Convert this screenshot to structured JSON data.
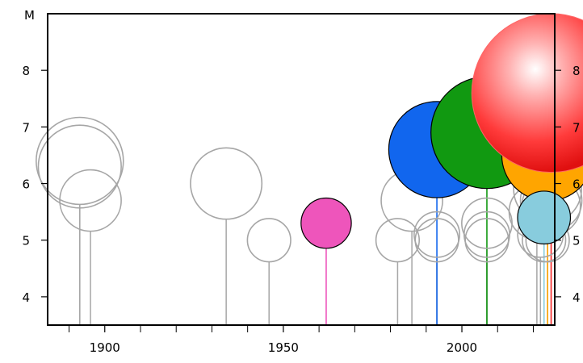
{
  "chart_data": {
    "type": "scatter",
    "title": "",
    "xlabel": "",
    "ylabel": "M",
    "xlim": [
      1884,
      2026
    ],
    "ylim": [
      3.5,
      9.0
    ],
    "grid": false,
    "x_ticks_major": [
      1900,
      1950,
      2000
    ],
    "x_ticks_minor": [
      1890,
      1910,
      1920,
      1930,
      1940,
      1960,
      1970,
      1980,
      1990,
      2010,
      2020
    ],
    "y_ticks": [
      4,
      5,
      6,
      7,
      8
    ],
    "highlighted_events": [
      {
        "x": 1962,
        "y": 5.3,
        "color": "#ee55bb"
      },
      {
        "x": 1993,
        "y": 6.6,
        "color": "#1166ee"
      },
      {
        "x": 2007,
        "y": 6.9,
        "color": "#119911"
      },
      {
        "x": 2024,
        "y": 6.5,
        "color": "#ffa500"
      },
      {
        "x": 2023,
        "y": 5.4,
        "color": "#88ccdd"
      },
      {
        "x": 2025,
        "y": 7.6,
        "color": "#ff3333"
      }
    ],
    "background_events": [
      {
        "x": 1893,
        "y": 6.4
      },
      {
        "x": 1893,
        "y": 6.3
      },
      {
        "x": 1896,
        "y": 5.7
      },
      {
        "x": 1934,
        "y": 6.0
      },
      {
        "x": 1946,
        "y": 5.0
      },
      {
        "x": 1982,
        "y": 5.0
      },
      {
        "x": 1986,
        "y": 5.7
      },
      {
        "x": 1993,
        "y": 5.1
      },
      {
        "x": 1993,
        "y": 5.0
      },
      {
        "x": 2007,
        "y": 5.3
      },
      {
        "x": 2007,
        "y": 5.1
      },
      {
        "x": 2007,
        "y": 5.0
      },
      {
        "x": 2021,
        "y": 5.5
      },
      {
        "x": 2022,
        "y": 5.1
      },
      {
        "x": 2023,
        "y": 5.0
      },
      {
        "x": 2024,
        "y": 5.9
      },
      {
        "x": 2025,
        "y": 5.7
      },
      {
        "x": 2025,
        "y": 5.6
      },
      {
        "x": 2024,
        "y": 5.0
      }
    ]
  }
}
